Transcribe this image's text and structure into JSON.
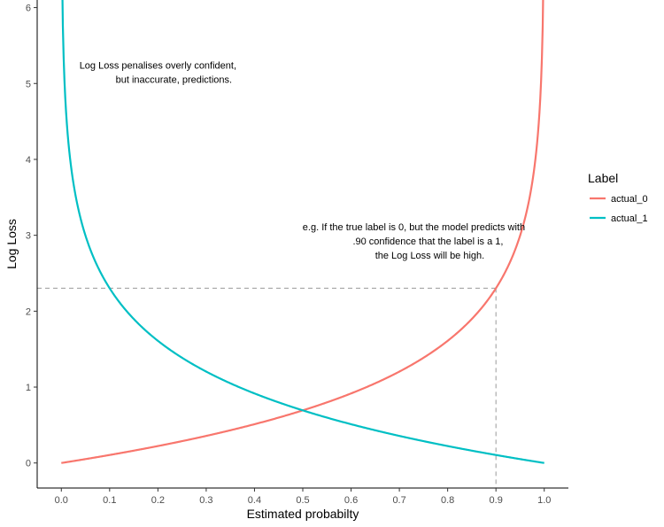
{
  "chart_data": {
    "type": "line",
    "title": "",
    "xlabel": "Estimated probabilty",
    "ylabel": "Log Loss",
    "xlim": [
      -0.05,
      1.05
    ],
    "ylim": [
      -0.33,
      6.1
    ],
    "x_ticks": [
      "0.0",
      "0.1",
      "0.2",
      "0.3",
      "0.4",
      "0.5",
      "0.6",
      "0.7",
      "0.8",
      "0.9",
      "1.0"
    ],
    "y_ticks": [
      "0",
      "1",
      "2",
      "3",
      "4",
      "5",
      "6"
    ],
    "grid": false,
    "legend": {
      "title": "Label",
      "placement": "right"
    },
    "series": [
      {
        "name": "actual_0",
        "color": "#F8766D",
        "formula": "-ln(1 - p)",
        "x": [
          0.0,
          0.05,
          0.1,
          0.15,
          0.2,
          0.25,
          0.3,
          0.35,
          0.4,
          0.45,
          0.5,
          0.55,
          0.6,
          0.65,
          0.7,
          0.75,
          0.8,
          0.85,
          0.9,
          0.95,
          0.97,
          0.98,
          0.99,
          0.995,
          0.998
        ],
        "y": [
          0.0,
          0.051,
          0.105,
          0.163,
          0.223,
          0.288,
          0.357,
          0.431,
          0.511,
          0.598,
          0.693,
          0.799,
          0.916,
          1.05,
          1.204,
          1.386,
          1.609,
          1.897,
          2.303,
          2.996,
          3.507,
          3.912,
          4.605,
          5.298,
          6.215
        ]
      },
      {
        "name": "actual_1",
        "color": "#00BFC4",
        "formula": "-ln(p)",
        "x": [
          0.002,
          0.005,
          0.01,
          0.02,
          0.03,
          0.05,
          0.1,
          0.15,
          0.2,
          0.25,
          0.3,
          0.35,
          0.4,
          0.45,
          0.5,
          0.55,
          0.6,
          0.65,
          0.7,
          0.75,
          0.8,
          0.85,
          0.9,
          0.95,
          1.0
        ],
        "y": [
          6.215,
          5.298,
          4.605,
          3.912,
          3.507,
          2.996,
          2.303,
          1.897,
          1.609,
          1.386,
          1.204,
          1.05,
          0.916,
          0.799,
          0.693,
          0.598,
          0.511,
          0.431,
          0.357,
          0.288,
          0.223,
          0.163,
          0.105,
          0.051,
          0.0
        ]
      }
    ],
    "reference_lines": {
      "horizontal_y": 2.303,
      "vertical_x": 0.9,
      "color": "#999999",
      "style": "dashed"
    },
    "annotations": [
      {
        "lines": [
          "Log Loss penalises overly confident,",
          "but inaccurate, predictions."
        ],
        "x": 0.2,
        "y": 5.1,
        "align": "end"
      },
      {
        "lines": [
          "e.g. If the true label is 0, but the model predicts with",
          ".90 confidence that the label is a 1,",
          "the Log Loss will be high."
        ],
        "x": 0.73,
        "y": 2.88,
        "align": "end"
      }
    ]
  }
}
